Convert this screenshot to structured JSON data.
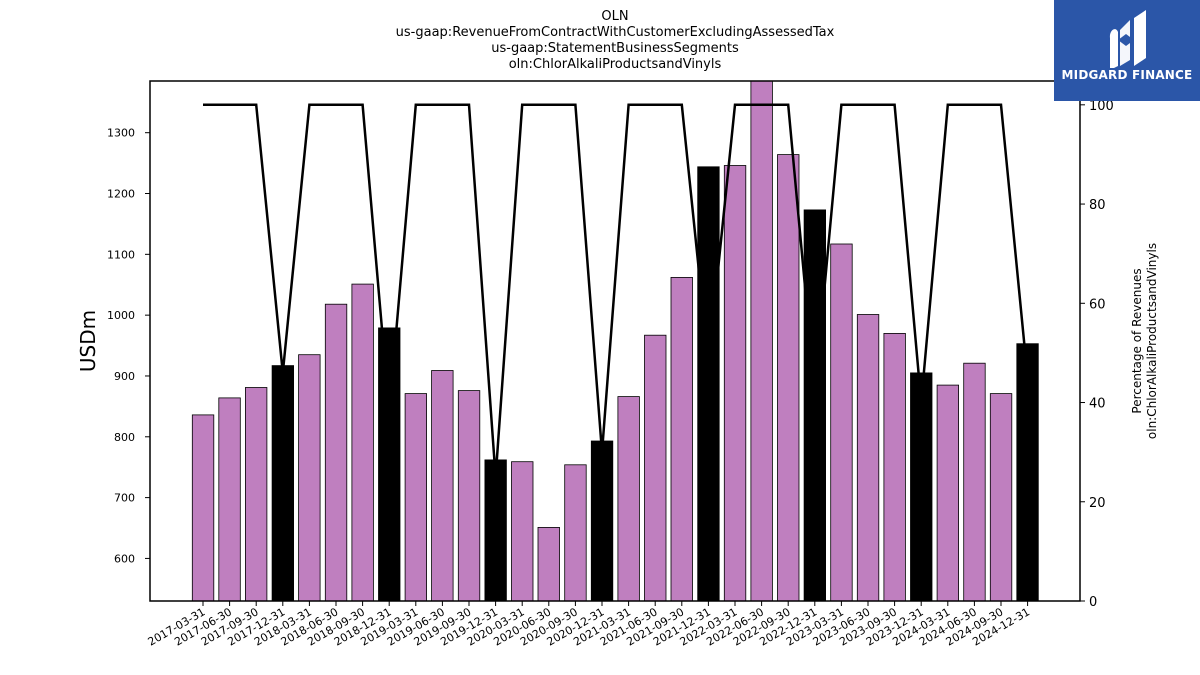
{
  "brand": {
    "name": "MIDGARD FINANCE",
    "bg_color": "#2b56a8"
  },
  "chart_data": {
    "type": "bar",
    "title_lines": [
      "OLN",
      "us-gaap:RevenueFromContractWithCustomerExcludingAssessedTax",
      "us-gaap:StatementBusinessSegments",
      "oln:ChlorAlkaliProductsandVinyls"
    ],
    "ylabel": "USDm",
    "y2label_lines": [
      "Percentage of Revenues",
      "oln:ChlorAlkaliProductsandVinyls"
    ],
    "ylim": [
      530,
      1385
    ],
    "y_ticks": [
      600,
      700,
      800,
      900,
      1000,
      1100,
      1200,
      1300
    ],
    "y2lim": [
      0,
      104.8
    ],
    "y2_ticks": [
      0,
      20,
      40,
      60,
      80,
      100
    ],
    "categories": [
      "2017-03-31",
      "2017-06-30",
      "2017-09-30",
      "2017-12-31",
      "2018-03-31",
      "2018-06-30",
      "2018-09-30",
      "2018-12-31",
      "2019-03-31",
      "2019-06-30",
      "2019-09-30",
      "2019-12-31",
      "2020-03-31",
      "2020-06-30",
      "2020-09-30",
      "2020-12-31",
      "2021-03-31",
      "2021-06-30",
      "2021-09-30",
      "2021-12-31",
      "2022-03-31",
      "2022-06-30",
      "2022-09-30",
      "2022-12-31",
      "2023-03-31",
      "2023-06-30",
      "2023-09-30",
      "2023-12-31",
      "2024-03-31",
      "2024-06-30",
      "2024-09-30",
      "2024-12-31"
    ],
    "values": [
      836,
      864,
      881,
      917,
      935,
      1018,
      1051,
      979,
      871,
      909,
      876,
      762,
      759,
      651,
      754,
      793,
      866,
      967,
      1062,
      1244,
      1246,
      1395,
      1264,
      1173,
      1117,
      1001,
      970,
      905,
      885,
      921,
      871,
      953
    ],
    "is_annual": [
      false,
      false,
      false,
      true,
      false,
      false,
      false,
      true,
      false,
      false,
      false,
      true,
      false,
      false,
      false,
      true,
      false,
      false,
      false,
      true,
      false,
      false,
      false,
      true,
      false,
      false,
      false,
      true,
      false,
      false,
      false,
      true
    ],
    "series": [
      {
        "name": "Revenue",
        "axis": "left",
        "color": "#bf7fbf",
        "annual_color": "#000000"
      },
      {
        "name": "Percentage of Revenues",
        "axis": "right",
        "color": "#000000",
        "values": [
          100,
          100,
          100,
          46,
          100,
          100,
          100,
          38,
          100,
          100,
          100,
          25,
          100,
          100,
          100,
          30,
          100,
          100,
          100,
          48,
          100,
          100,
          100,
          42,
          100,
          100,
          100,
          40,
          100,
          100,
          100,
          45
        ]
      }
    ],
    "grid": false
  }
}
